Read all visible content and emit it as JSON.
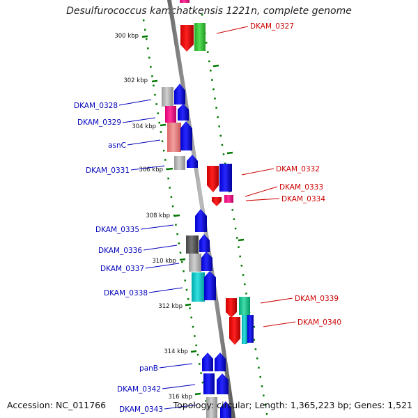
{
  "title": "Desulfurococcus kamchatkensis 1221n, complete genome",
  "footer": {
    "accession": "Accession: NC_011766",
    "topology": "Topology: circular; Length: 1,365,223 bp; Genes: 1,521"
  },
  "colors": {
    "label_left": "#0000bb",
    "label_right": "#cc0000",
    "tick": "#007700",
    "backbone": "#888888"
  },
  "scale_labels": [
    "300 kbp",
    "302 kbp",
    "304 kbp",
    "306 kbp",
    "308 kbp",
    "310 kbp",
    "312 kbp",
    "314 kbp",
    "316 kbp"
  ],
  "genes_left": [
    "DKAM_0328",
    "DKAM_0329",
    "asnC",
    "DKAM_0331",
    "DKAM_0335",
    "DKAM_0336",
    "DKAM_0337",
    "DKAM_0338",
    "panB",
    "DKAM_0342",
    "DKAM_0343"
  ],
  "genes_right": [
    "DKAM_0327",
    "DKAM_0332",
    "DKAM_0333",
    "DKAM_0334",
    "DKAM_0339",
    "DKAM_0340"
  ]
}
